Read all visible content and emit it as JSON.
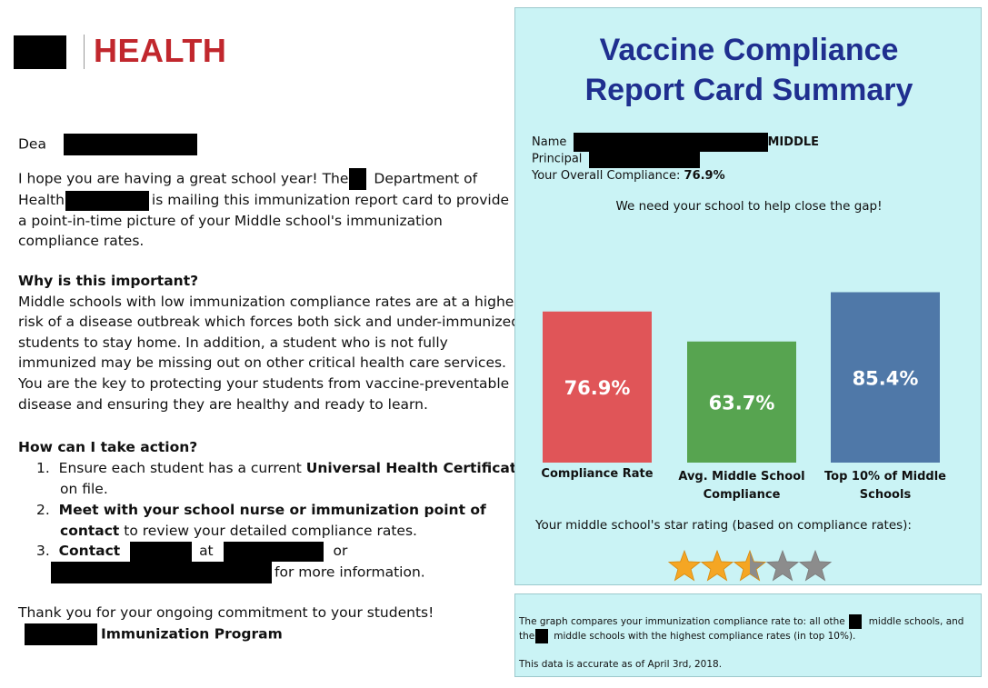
{
  "logo": {
    "word": "HEALTH"
  },
  "letter": {
    "greeting": "Dea",
    "intro_line1a": "I hope you are having a great school year! The",
    "intro_line1b": "Department of",
    "intro_line2a": "Health",
    "intro_line2b": "is mailing this immunization report card to provide",
    "intro_line3": "a point-in-time picture of your Middle school's immunization",
    "intro_line4": "compliance rates.",
    "why_heading": "Why is this important?",
    "why_lines": [
      "Middle schools with low immunization compliance rates are at a higher",
      "risk of a disease outbreak which forces both sick and under-immunized",
      "students to stay home. In addition, a student who is not fully",
      "immunized may be missing out on other critical health care services.",
      "You are the key to protecting your students from vaccine-preventable",
      "disease and ensuring they are healthy and ready to learn."
    ],
    "action_heading": "How can I take action?",
    "item1_num": "1.",
    "item1_text": "Ensure each student has a current",
    "item1_bold": "Universal Health Certificate",
    "item1_cont": "on file.",
    "item2_num": "2.",
    "item2_bold1": "Meet with your school nurse or immunization point of",
    "item2_bold2": "contact",
    "item2_text": "to review your detailed compliance rates.",
    "item3_num": "3.",
    "item3_bold": "Contact",
    "item3_at": "at",
    "item3_or": "or",
    "item3_cont": "for more information.",
    "closing": "Thank you for your ongoing commitment to your students!",
    "program": "Immunization Program"
  },
  "card": {
    "title_line1": "Vaccine Compliance",
    "title_line2": "Report Card Summary",
    "name_label": "Name",
    "name_suffix": "MIDDLE",
    "principal_label": "Principal",
    "overall_label": "Your Overall Compliance:",
    "overall_value": "76.9%",
    "gap_text": "We need your school to help close the gap!",
    "star_text": "Your middle school's star rating (based on compliance rates):",
    "star_rating": 2.5,
    "star_max": 5,
    "star_color": "#f5a623",
    "star_empty_color": "#8c8c8c"
  },
  "chart_data": {
    "type": "bar",
    "categories": [
      "Compliance Rate",
      "Avg. Middle School Compliance",
      "Top 10% of Middle Schools"
    ],
    "values": [
      76.9,
      63.7,
      85.4
    ],
    "value_labels": [
      "76.9%",
      "63.7%",
      "85.4%"
    ],
    "colors": [
      "#e05558",
      "#57a450",
      "#4f78a8"
    ],
    "title": "",
    "xlabel": "",
    "ylabel": "",
    "grid": false,
    "legend": "none"
  },
  "cat_labels": {
    "c1_line1": "Compliance Rate",
    "c2_line1": "Avg. Middle School",
    "c2_line2": "Compliance",
    "c3_line1": "Top 10% of Middle",
    "c3_line2": "Schools"
  },
  "note": {
    "line1a": "The graph compares your immunization compliance rate to: all othe",
    "line1b": "middle schools, and",
    "line2a": "the",
    "line2b": "middle schools with the highest compliance rates (in top 10%).",
    "line3": "This data is accurate as of April 3rd, 2018."
  }
}
